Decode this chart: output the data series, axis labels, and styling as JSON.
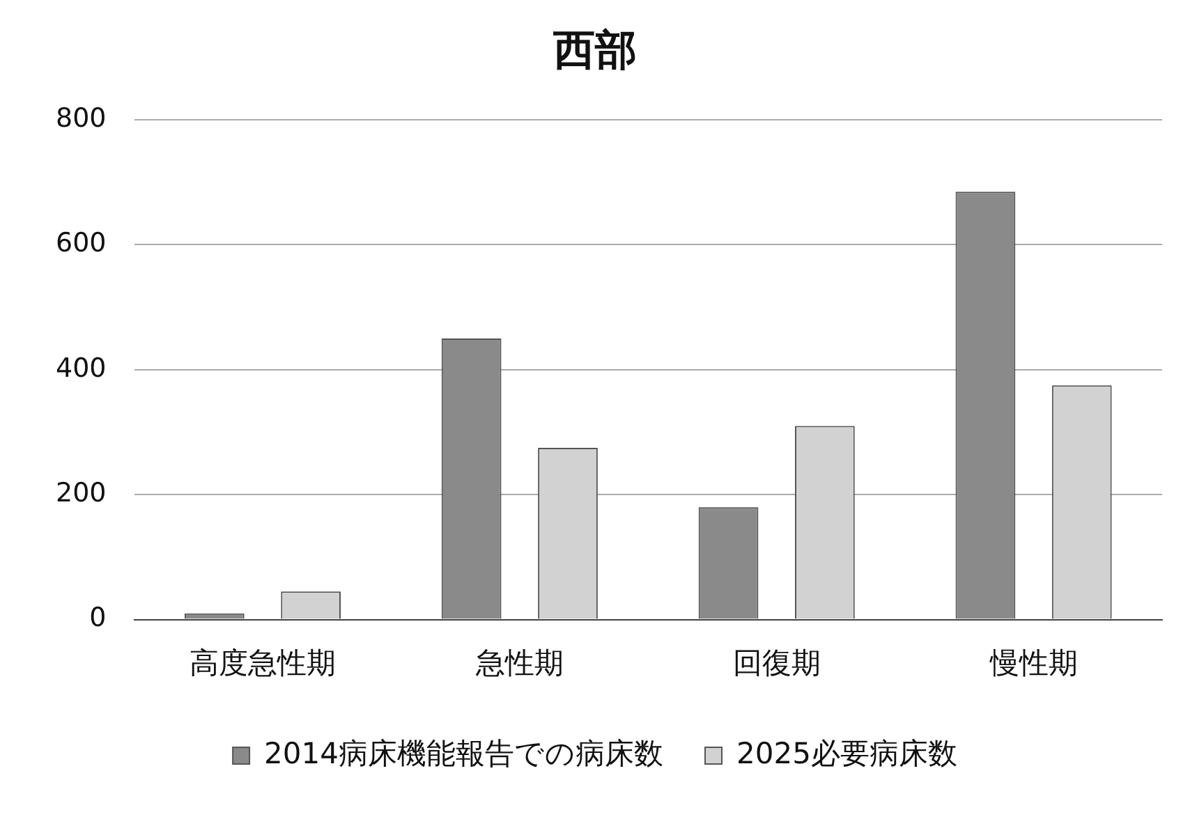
{
  "chart_data": {
    "type": "bar",
    "title": "西部",
    "categories": [
      "高度急性期",
      "急性期",
      "回復期",
      "慢性期"
    ],
    "series": [
      {
        "name": "2014病床機能報告での病床数",
        "color": "#8a8a8a",
        "values": [
          10,
          450,
          180,
          685
        ]
      },
      {
        "name": "2025必要病床数",
        "color": "#d2d2d2",
        "values": [
          45,
          275,
          310,
          375
        ]
      }
    ],
    "ylim": [
      0,
      800
    ],
    "yticks": [
      0,
      200,
      400,
      600,
      800
    ],
    "grid": "y",
    "legend": "bottom"
  }
}
